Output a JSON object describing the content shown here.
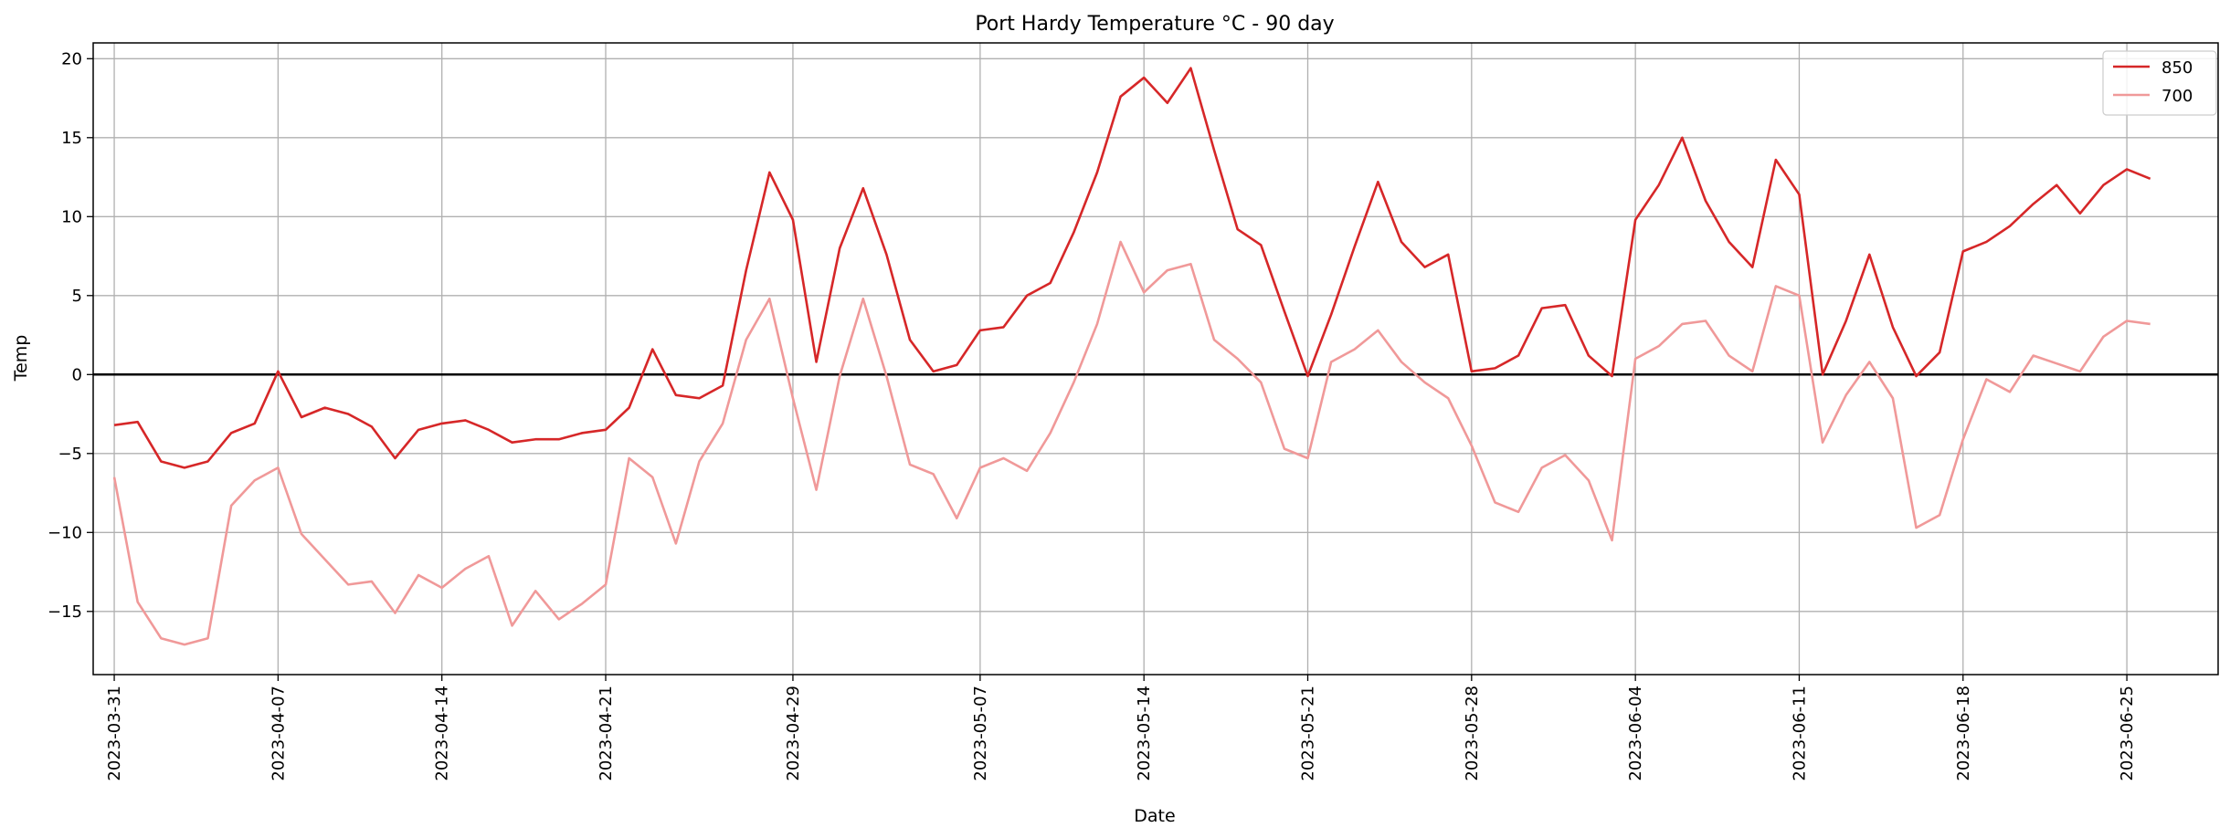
{
  "chart_data": {
    "type": "line",
    "title": "Port Hardy Temperature °C - 90 day",
    "xlabel": "Date",
    "ylabel": "Temp",
    "x_start": "2023-03-31",
    "x_end": "2023-06-28",
    "xlim": [
      "2023-03-31",
      "2023-06-28"
    ],
    "ylim": [
      -19,
      21
    ],
    "yticks": [
      -15,
      -10,
      -5,
      0,
      5,
      10,
      15,
      20
    ],
    "ytick_labels": [
      "−15",
      "−10",
      "−5",
      "0",
      "5",
      "10",
      "15",
      "20"
    ],
    "xticks": [
      "2023-03-31",
      "2023-04-07",
      "2023-04-14",
      "2023-04-21",
      "2023-04-29",
      "2023-05-07",
      "2023-05-14",
      "2023-05-21",
      "2023-05-28",
      "2023-06-04",
      "2023-06-11",
      "2023-06-18",
      "2023-06-25"
    ],
    "grid": true,
    "zero_line": true,
    "legend_position": "top-right",
    "series": [
      {
        "name": "850",
        "color": "#d62728",
        "values": [
          -3.2,
          -3.0,
          -5.5,
          -5.9,
          -5.5,
          -3.7,
          -3.1,
          0.2,
          -2.7,
          -2.1,
          -2.5,
          -3.3,
          -5.3,
          -3.5,
          -3.1,
          -2.9,
          -3.5,
          -4.3,
          -4.1,
          -4.1,
          -3.7,
          -3.5,
          -2.1,
          1.6,
          -1.3,
          -1.5,
          -0.7,
          6.6,
          12.8,
          9.8,
          0.8,
          8.0,
          11.8,
          7.6,
          2.2,
          0.2,
          0.6,
          2.8,
          3.0,
          5.0,
          5.8,
          9.0,
          12.8,
          17.6,
          18.8,
          17.2,
          19.4,
          14.2,
          9.2,
          8.2,
          4.0,
          -0.1,
          3.8,
          8.1,
          12.2,
          8.4,
          6.8,
          7.6,
          0.2,
          0.4,
          1.2,
          4.2,
          4.4,
          1.2,
          -0.1,
          9.8,
          12.0,
          15.0,
          11.0,
          8.4,
          6.8,
          13.6,
          11.4,
          0.0,
          3.4,
          7.6,
          3.0,
          -0.1,
          1.4,
          7.8,
          8.4,
          9.4,
          10.8,
          12.0,
          10.2,
          12.0,
          13.0,
          12.4
        ]
      },
      {
        "name": "700",
        "color": "#f09999",
        "values": [
          -6.5,
          -14.4,
          -16.7,
          -17.1,
          -16.7,
          -8.3,
          -6.7,
          -5.9,
          -10.1,
          -11.7,
          -13.3,
          -13.1,
          -15.1,
          -12.7,
          -13.5,
          -12.3,
          -11.5,
          -15.9,
          -13.7,
          -15.5,
          -14.5,
          -13.3,
          -5.3,
          -6.5,
          -10.7,
          -5.5,
          -3.1,
          2.2,
          4.8,
          -1.5,
          -7.3,
          -0.1,
          4.8,
          -0.1,
          -5.7,
          -6.3,
          -9.1,
          -5.9,
          -5.3,
          -6.1,
          -3.7,
          -0.5,
          3.2,
          8.4,
          5.2,
          6.6,
          7.0,
          2.2,
          1.0,
          -0.5,
          -4.7,
          -5.3,
          0.8,
          1.6,
          2.8,
          0.8,
          -0.5,
          -1.5,
          -4.5,
          -8.1,
          -8.7,
          -5.9,
          -5.1,
          -6.7,
          -10.5,
          1.0,
          1.8,
          3.2,
          3.4,
          1.2,
          0.2,
          5.6,
          5.0,
          -4.3,
          -1.3,
          0.8,
          -1.5,
          -9.7,
          -8.9,
          -4.1,
          -0.3,
          -1.1,
          1.2,
          0.7,
          0.2,
          2.4,
          3.4,
          3.2
        ]
      }
    ]
  }
}
